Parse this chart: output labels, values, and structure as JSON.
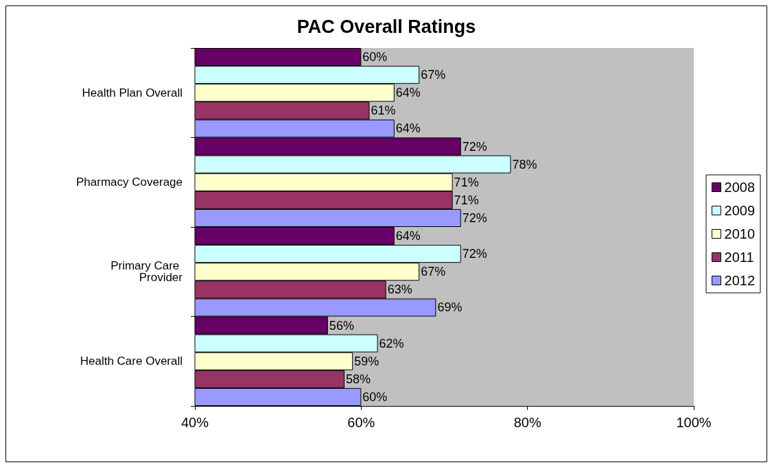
{
  "chart_data": {
    "type": "bar",
    "orientation": "horizontal",
    "title": "PAC Overall Ratings",
    "categories": [
      "Health Plan Overall",
      "Pharmacy Coverage",
      "Primary Care Provider",
      "Health Care Overall"
    ],
    "series": [
      {
        "name": "2008",
        "color": "#660066",
        "values": [
          60,
          72,
          64,
          56
        ],
        "value_labels": [
          "60%",
          "72%",
          "64%",
          "56%"
        ]
      },
      {
        "name": "2009",
        "color": "#ccffff",
        "values": [
          67,
          78,
          72,
          62
        ],
        "value_labels": [
          "67%",
          "78%",
          "72%",
          "62%"
        ]
      },
      {
        "name": "2010",
        "color": "#ffffcc",
        "values": [
          64,
          71,
          67,
          59
        ],
        "value_labels": [
          "64%",
          "71%",
          "67%",
          "59%"
        ]
      },
      {
        "name": "2011",
        "color": "#993366",
        "values": [
          61,
          71,
          63,
          58
        ],
        "value_labels": [
          "61%",
          "71%",
          "63%",
          "58%"
        ]
      },
      {
        "name": "2012",
        "color": "#9999ff",
        "values": [
          64,
          72,
          69,
          60
        ],
        "value_labels": [
          "64%",
          "72%",
          "69%",
          "60%"
        ]
      }
    ],
    "xlim": [
      40,
      100
    ],
    "xticks": [
      {
        "value": 40,
        "label": "40%"
      },
      {
        "value": 60,
        "label": "60%"
      },
      {
        "value": 80,
        "label": "80%"
      },
      {
        "value": 100,
        "label": "100%"
      }
    ],
    "grid": false,
    "legend": "right"
  }
}
